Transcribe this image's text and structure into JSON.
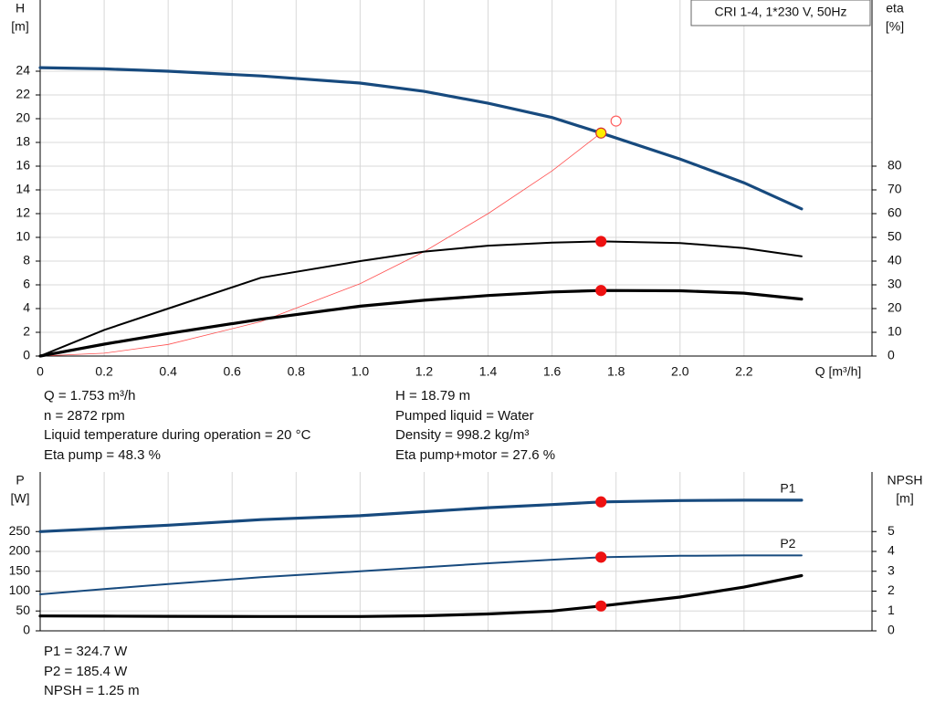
{
  "chart_data": [
    {
      "type": "line",
      "ylabel": [
        "H",
        "[m]"
      ],
      "y2label": [
        "eta",
        "[%]"
      ],
      "xlabel": "Q [m³/h]",
      "annotation": "CRI 1-4, 1*230 V, 50Hz",
      "xlim": [
        0,
        2.6
      ],
      "xticks": [
        0,
        0.2,
        0.4,
        0.6,
        0.8,
        {
          "value": 1,
          "label": "1.0"
        },
        1.2,
        1.4,
        1.6,
        1.8,
        {
          "value": 2,
          "label": "2.0"
        },
        2.2
      ],
      "ylim": [
        0,
        30
      ],
      "yticks": [
        0,
        2,
        4,
        6,
        8,
        10,
        12,
        14,
        16,
        18,
        20,
        22,
        24
      ],
      "y2lim": [
        0,
        150
      ],
      "y2ticks": [
        0,
        10,
        20,
        30,
        40,
        50,
        60,
        70,
        80
      ],
      "grid": true,
      "x": [
        0,
        0.2,
        0.4,
        0.69,
        1.0,
        1.2,
        1.4,
        1.6,
        1.753,
        2.0,
        2.2,
        2.38
      ],
      "series": [
        {
          "color": "#ff5050",
          "line_weight": "thin",
          "axis": "y",
          "values": [
            0,
            0.24,
            0.98,
            2.9,
            6.1,
            8.8,
            12.0,
            15.6,
            18.79,
            null,
            null,
            null
          ]
        },
        {
          "color": "#174a7e",
          "line_weight": "thick",
          "axis": "y",
          "values": [
            24.3,
            24.2,
            24.0,
            23.6,
            23.0,
            22.3,
            21.3,
            20.1,
            18.79,
            16.6,
            14.6,
            12.4
          ]
        },
        {
          "color": "#000000",
          "line_weight": "medium",
          "axis": "y2",
          "values": [
            0,
            11,
            20,
            33,
            40,
            44,
            46.5,
            47.8,
            48.3,
            47.6,
            45.5,
            42
          ]
        },
        {
          "color": "#000000",
          "line_weight": "thick",
          "axis": "y2",
          "values": [
            0,
            5,
            9.5,
            15.5,
            21,
            23.5,
            25.5,
            27,
            27.6,
            27.5,
            26.5,
            24
          ]
        }
      ],
      "points": [
        {
          "x": 1.753,
          "y": 18.79,
          "axis": "y",
          "fill": "#ffee00",
          "stroke": "#d03030"
        },
        {
          "x": 1.8,
          "y": 19.8,
          "axis": "y",
          "fill": "#ffffff",
          "stroke": "#ff6060"
        },
        {
          "x": 1.753,
          "y": 48.3,
          "axis": "y2",
          "fill": "#ee1111",
          "stroke": "#ee1111"
        },
        {
          "x": 1.753,
          "y": 27.6,
          "axis": "y2",
          "fill": "#ee1111",
          "stroke": "#ee1111"
        }
      ]
    },
    {
      "type": "line",
      "ylabel": [
        "P",
        "[W]"
      ],
      "y2label": [
        "NPSH",
        "[m]"
      ],
      "xlim": [
        0,
        2.6
      ],
      "xticks": [
        0,
        0.2,
        0.4,
        0.6,
        0.8,
        1,
        1.2,
        1.4,
        1.6,
        1.8,
        2,
        2.2
      ],
      "ylim": [
        0,
        400
      ],
      "yticks": [
        0,
        50,
        100,
        150,
        200,
        250
      ],
      "y2lim": [
        0,
        8
      ],
      "y2ticks": [
        0,
        1,
        2,
        3,
        4,
        5
      ],
      "grid": true,
      "x": [
        0,
        0.2,
        0.4,
        0.69,
        1.0,
        1.2,
        1.4,
        1.6,
        1.753,
        2.0,
        2.2,
        2.38
      ],
      "series": [
        {
          "name": "P1",
          "color": "#174a7e",
          "line_weight": "thick",
          "axis": "y",
          "values": [
            250,
            258,
            266,
            280,
            290,
            300,
            310,
            318,
            324.7,
            328,
            329,
            329
          ]
        },
        {
          "name": "P2",
          "color": "#174a7e",
          "line_weight": "medium",
          "axis": "y",
          "values": [
            92,
            105,
            118,
            135,
            150,
            160,
            170,
            179,
            185.4,
            189,
            190,
            190
          ]
        },
        {
          "color": "#000000",
          "line_weight": "thick",
          "axis": "y2",
          "values": [
            0.75,
            0.74,
            0.73,
            0.72,
            0.72,
            0.76,
            0.85,
            1.0,
            1.25,
            1.7,
            2.2,
            2.78
          ]
        }
      ],
      "points": [
        {
          "x": 1.753,
          "y": 324.7,
          "axis": "y",
          "fill": "#ee1111",
          "stroke": "#ee1111"
        },
        {
          "x": 1.753,
          "y": 185.4,
          "axis": "y",
          "fill": "#ee1111",
          "stroke": "#ee1111"
        },
        {
          "x": 1.753,
          "y": 1.25,
          "axis": "y2",
          "fill": "#ee1111",
          "stroke": "#ee1111"
        }
      ]
    }
  ],
  "info_top": {
    "left": [
      "Q = 1.753 m³/h",
      "n = 2872 rpm",
      "Liquid temperature during operation = 20 °C",
      "Eta pump = 48.3 %"
    ],
    "right": [
      "H = 18.79 m",
      "Pumped liquid = Water",
      "Density = 998.2 kg/m³",
      "Eta pump+motor = 27.6 %"
    ]
  },
  "info_bottom": [
    "P1 = 324.7 W",
    "P2 = 185.4 W",
    "NPSH = 1.25 m"
  ]
}
